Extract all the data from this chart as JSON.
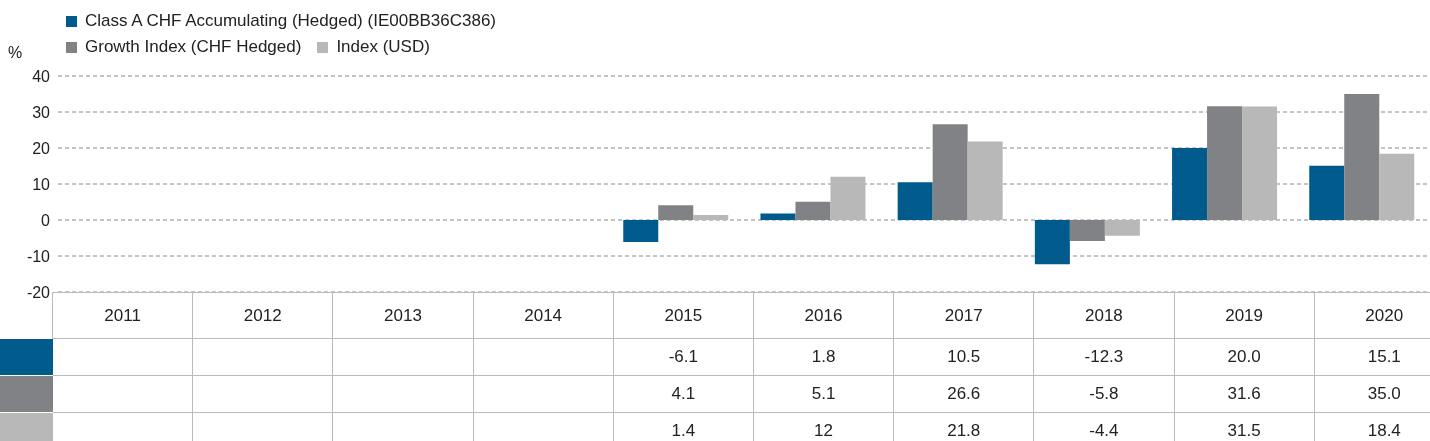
{
  "chart_data": {
    "type": "bar",
    "ylabel": "%",
    "categories": [
      "2011",
      "2012",
      "2013",
      "2014",
      "2015",
      "2016",
      "2017",
      "2018",
      "2019",
      "2020"
    ],
    "series": [
      {
        "name": "Class A CHF Accumulating (Hedged) (IE00BB36C386)",
        "color": "#005a8c",
        "values": [
          null,
          null,
          null,
          null,
          -6.1,
          1.8,
          10.5,
          -12.3,
          20.0,
          15.1
        ],
        "value_labels": [
          null,
          null,
          null,
          null,
          "-6.1",
          "1.8",
          "10.5",
          "-12.3",
          "20.0",
          "15.1"
        ]
      },
      {
        "name": "Growth Index (CHF Hedged)",
        "color": "#808285",
        "values": [
          null,
          null,
          null,
          null,
          4.1,
          5.1,
          26.6,
          -5.8,
          31.6,
          35.0
        ],
        "value_labels": [
          null,
          null,
          null,
          null,
          "4.1",
          "5.1",
          "26.6",
          "-5.8",
          "31.6",
          "35.0"
        ]
      },
      {
        "name": "Index (USD)",
        "color": "#b8b8b8",
        "values": [
          null,
          null,
          null,
          null,
          1.4,
          12,
          21.8,
          -4.4,
          31.5,
          18.4
        ],
        "value_labels": [
          null,
          null,
          null,
          null,
          "1.4",
          "12",
          "21.8",
          "-4.4",
          "31.5",
          "18.4"
        ]
      }
    ],
    "ylim": [
      -20,
      40
    ],
    "yticks": [
      -20,
      -10,
      0,
      10,
      20,
      30,
      40
    ],
    "grid": "y",
    "legend": "top left"
  }
}
